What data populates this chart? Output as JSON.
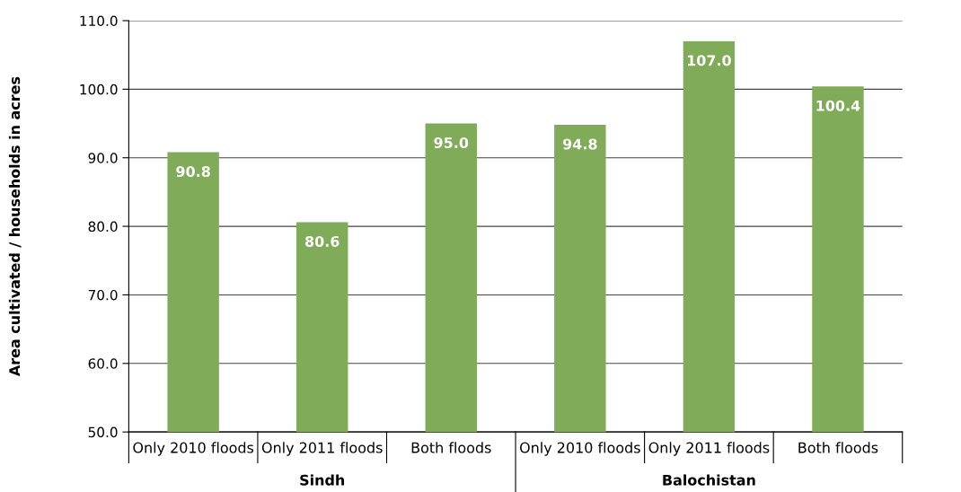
{
  "chart_data": {
    "type": "bar",
    "ylabel": "Area cultivated / households in acres",
    "categories": [
      "Only 2010 floods",
      "Only 2011 floods",
      "Both floods",
      "Only 2010 floods",
      "Only 2011 floods",
      "Both floods"
    ],
    "values": [
      90.8,
      80.6,
      95.0,
      94.8,
      107.0,
      100.4
    ],
    "value_labels": [
      "90.8",
      "80.6",
      "95.0",
      "94.8",
      "107.0",
      "100.4"
    ],
    "color": "#80ac59",
    "ylim": [
      50,
      110
    ],
    "yticks": [
      {
        "value": 50,
        "label": "50.0"
      },
      {
        "value": 60,
        "label": "60.0"
      },
      {
        "value": 70,
        "label": "70.0"
      },
      {
        "value": 80,
        "label": "80.0"
      },
      {
        "value": 90,
        "label": "90.0"
      },
      {
        "value": 100,
        "label": "100.0"
      },
      {
        "value": 110,
        "label": "110.0"
      }
    ],
    "grid": "y",
    "legend": false,
    "annotations": [
      "Sindh",
      "Balochistan"
    ]
  }
}
